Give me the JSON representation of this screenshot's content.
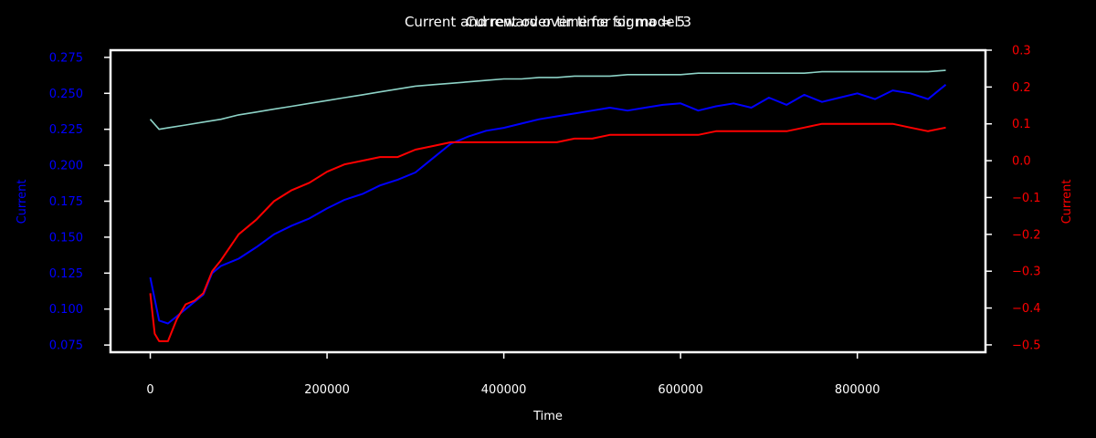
{
  "titles": [
    "Current and reward over time for model 3",
    "Current over time for sigma = 5"
  ],
  "chart_data": {
    "type": "line",
    "xlabel": "Time",
    "ylabel_left": "Current",
    "ylabel_right": "Current",
    "xlim": [
      -45000,
      945000
    ],
    "ylim_left": [
      0.07,
      0.28
    ],
    "ylim_right": [
      -0.52,
      0.3
    ],
    "x_ticks": [
      0,
      200000,
      400000,
      600000,
      800000
    ],
    "x_tick_labels": [
      "0",
      "200000",
      "400000",
      "600000",
      "800000"
    ],
    "y_left_ticks": [
      0.075,
      0.1,
      0.125,
      0.15,
      0.175,
      0.2,
      0.225,
      0.25,
      0.275
    ],
    "y_left_tick_labels": [
      "0.075",
      "0.100",
      "0.125",
      "0.150",
      "0.175",
      "0.200",
      "0.225",
      "0.250",
      "0.275"
    ],
    "y_right_ticks": [
      -0.5,
      -0.4,
      -0.3,
      -0.2,
      -0.1,
      0.0,
      0.1,
      0.2,
      0.3
    ],
    "y_right_tick_labels": [
      "−0.5",
      "−0.4",
      "−0.3",
      "−0.2",
      "−0.1",
      "0.0",
      "0.1",
      "0.2",
      "0.3"
    ],
    "grid": false,
    "colors": {
      "background": "#000000",
      "spines": "#ffffff",
      "text": "#ffffff",
      "left_axis": "#0000ff",
      "right_axis": "#ff0000"
    },
    "series": [
      {
        "axis": "left",
        "color": "#0000ff",
        "x": [
          0,
          10000,
          20000,
          30000,
          40000,
          50000,
          60000,
          70000,
          80000,
          100000,
          120000,
          140000,
          160000,
          180000,
          200000,
          220000,
          240000,
          260000,
          280000,
          300000,
          320000,
          340000,
          360000,
          380000,
          400000,
          420000,
          440000,
          460000,
          480000,
          500000,
          520000,
          540000,
          560000,
          580000,
          600000,
          620000,
          640000,
          660000,
          680000,
          700000,
          720000,
          740000,
          760000,
          780000,
          800000,
          820000,
          840000,
          860000,
          880000,
          900000
        ],
        "y": [
          0.122,
          0.092,
          0.09,
          0.095,
          0.1,
          0.105,
          0.11,
          0.125,
          0.13,
          0.135,
          0.143,
          0.152,
          0.158,
          0.163,
          0.17,
          0.176,
          0.18,
          0.186,
          0.19,
          0.195,
          0.205,
          0.215,
          0.22,
          0.224,
          0.226,
          0.229,
          0.232,
          0.234,
          0.236,
          0.238,
          0.24,
          0.238,
          0.24,
          0.242,
          0.243,
          0.238,
          0.241,
          0.243,
          0.24,
          0.247,
          0.242,
          0.249,
          0.244,
          0.247,
          0.25,
          0.246,
          0.252,
          0.25,
          0.246,
          0.256
        ]
      },
      {
        "axis": "left",
        "color": "#8dd3c7",
        "x": [
          0,
          10000,
          20000,
          40000,
          60000,
          80000,
          100000,
          120000,
          140000,
          160000,
          180000,
          200000,
          220000,
          240000,
          260000,
          280000,
          300000,
          320000,
          340000,
          360000,
          380000,
          400000,
          420000,
          440000,
          460000,
          480000,
          500000,
          520000,
          540000,
          560000,
          580000,
          600000,
          620000,
          640000,
          660000,
          680000,
          700000,
          720000,
          740000,
          760000,
          780000,
          800000,
          820000,
          840000,
          860000,
          880000,
          900000
        ],
        "y": [
          0.232,
          0.225,
          0.226,
          0.228,
          0.23,
          0.232,
          0.235,
          0.237,
          0.239,
          0.241,
          0.243,
          0.245,
          0.247,
          0.249,
          0.251,
          0.253,
          0.255,
          0.256,
          0.257,
          0.258,
          0.259,
          0.26,
          0.26,
          0.261,
          0.261,
          0.262,
          0.262,
          0.262,
          0.263,
          0.263,
          0.263,
          0.263,
          0.264,
          0.264,
          0.264,
          0.264,
          0.264,
          0.264,
          0.264,
          0.265,
          0.265,
          0.265,
          0.265,
          0.265,
          0.265,
          0.265,
          0.266
        ]
      },
      {
        "axis": "right",
        "color": "#ff0000",
        "x": [
          0,
          5000,
          10000,
          20000,
          30000,
          40000,
          50000,
          60000,
          70000,
          80000,
          100000,
          120000,
          140000,
          160000,
          180000,
          200000,
          220000,
          240000,
          260000,
          280000,
          300000,
          320000,
          340000,
          360000,
          380000,
          400000,
          420000,
          440000,
          460000,
          480000,
          500000,
          520000,
          540000,
          560000,
          580000,
          600000,
          620000,
          640000,
          660000,
          680000,
          700000,
          720000,
          740000,
          760000,
          780000,
          800000,
          820000,
          840000,
          860000,
          880000,
          900000
        ],
        "y": [
          -0.36,
          -0.47,
          -0.49,
          -0.49,
          -0.43,
          -0.39,
          -0.38,
          -0.36,
          -0.3,
          -0.27,
          -0.2,
          -0.16,
          -0.11,
          -0.08,
          -0.06,
          -0.03,
          -0.01,
          0.0,
          0.01,
          0.01,
          0.03,
          0.04,
          0.05,
          0.05,
          0.05,
          0.05,
          0.05,
          0.05,
          0.05,
          0.06,
          0.06,
          0.07,
          0.07,
          0.07,
          0.07,
          0.07,
          0.07,
          0.08,
          0.08,
          0.08,
          0.08,
          0.08,
          0.09,
          0.1,
          0.1,
          0.1,
          0.1,
          0.1,
          0.09,
          0.08,
          0.09
        ]
      }
    ]
  }
}
